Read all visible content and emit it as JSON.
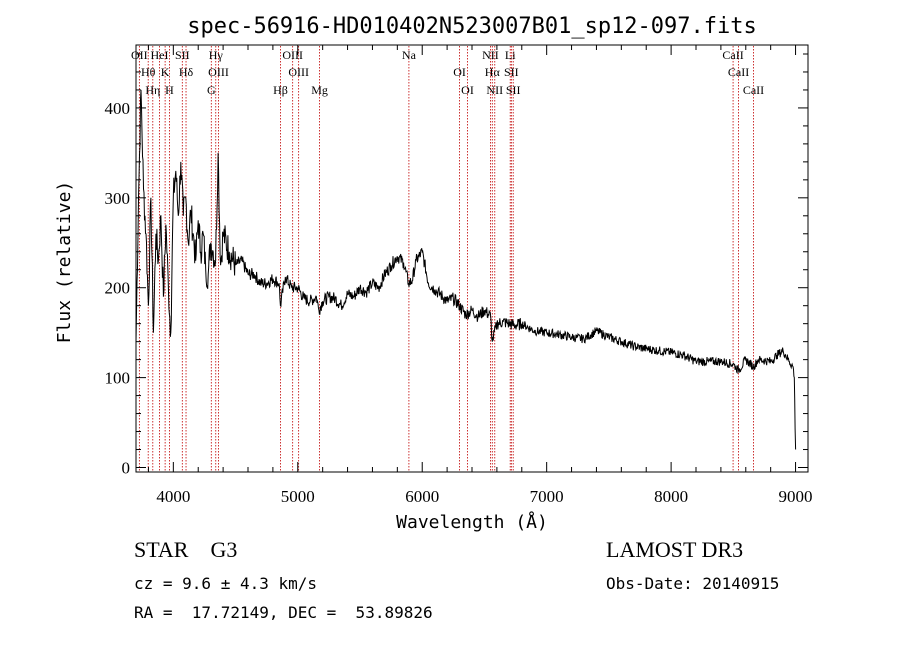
{
  "chart_data": {
    "type": "line",
    "title": "spec-56916-HD010402N523007B01_sp12-097.fits",
    "xlabel": "Wavelength (Å)",
    "ylabel": "Flux (relative)",
    "xlim": [
      3700,
      9100
    ],
    "ylim": [
      -5,
      470
    ],
    "xticks": [
      4000,
      5000,
      6000,
      7000,
      8000,
      9000
    ],
    "yticks": [
      0,
      100,
      200,
      300,
      400
    ],
    "grid": false,
    "line_color": "#000000",
    "marker_color": "#c00000",
    "spectrum": {
      "x": [
        3700,
        3720,
        3740,
        3760,
        3780,
        3800,
        3820,
        3840,
        3860,
        3880,
        3900,
        3920,
        3940,
        3960,
        3980,
        4000,
        4020,
        4040,
        4060,
        4080,
        4100,
        4120,
        4140,
        4160,
        4180,
        4200,
        4220,
        4240,
        4260,
        4280,
        4300,
        4320,
        4340,
        4360,
        4380,
        4400,
        4450,
        4500,
        4550,
        4600,
        4650,
        4700,
        4750,
        4800,
        4850,
        4860,
        4900,
        4950,
        5000,
        5050,
        5100,
        5150,
        5170,
        5200,
        5250,
        5300,
        5350,
        5400,
        5450,
        5500,
        5550,
        5600,
        5650,
        5700,
        5750,
        5800,
        5850,
        5890,
        5920,
        5950,
        6000,
        6050,
        6100,
        6150,
        6200,
        6250,
        6300,
        6350,
        6400,
        6450,
        6500,
        6550,
        6563,
        6600,
        6650,
        6700,
        6750,
        6800,
        6900,
        7000,
        7100,
        7200,
        7300,
        7400,
        7500,
        7600,
        7700,
        7800,
        7900,
        8000,
        8100,
        8200,
        8300,
        8400,
        8498,
        8542,
        8600,
        8662,
        8700,
        8800,
        8850,
        8900,
        8950,
        8980,
        8990,
        9000
      ],
      "y": [
        140,
        300,
        420,
        310,
        260,
        180,
        300,
        150,
        260,
        230,
        280,
        190,
        270,
        200,
        150,
        300,
        330,
        280,
        340,
        280,
        300,
        250,
        285,
        260,
        230,
        275,
        240,
        260,
        220,
        215,
        250,
        240,
        230,
        350,
        225,
        260,
        240,
        225,
        230,
        215,
        215,
        205,
        205,
        210,
        205,
        180,
        212,
        200,
        200,
        188,
        185,
        190,
        175,
        185,
        190,
        188,
        180,
        193,
        190,
        200,
        195,
        205,
        200,
        215,
        225,
        235,
        228,
        205,
        208,
        230,
        240,
        205,
        198,
        192,
        185,
        188,
        180,
        170,
        175,
        168,
        175,
        168,
        140,
        160,
        162,
        160,
        158,
        160,
        152,
        150,
        148,
        145,
        143,
        152,
        145,
        140,
        135,
        132,
        130,
        128,
        125,
        118,
        118,
        118,
        115,
        108,
        120,
        112,
        120,
        118,
        125,
        130,
        118,
        112,
        100,
        20
      ]
    },
    "lines_top": [
      {
        "x": 3727,
        "label": "OII"
      },
      {
        "x": 3798,
        "label": "Hθ"
      },
      {
        "x": 3835,
        "label": "Hη"
      },
      {
        "x": 3889,
        "label": "HeI"
      },
      {
        "x": 3934,
        "label": "K"
      },
      {
        "x": 3969,
        "label": "H"
      },
      {
        "x": 4072,
        "label": "SII"
      },
      {
        "x": 4102,
        "label": "Hδ"
      },
      {
        "x": 4305,
        "label": "G"
      },
      {
        "x": 4341,
        "label": "Hγ"
      },
      {
        "x": 4363,
        "label": "OIII"
      },
      {
        "x": 4861,
        "label": "Hβ"
      },
      {
        "x": 4959,
        "label": "OIII"
      },
      {
        "x": 5007,
        "label": "OIII"
      },
      {
        "x": 5175,
        "label": "Mg"
      },
      {
        "x": 5893,
        "label": "Na"
      },
      {
        "x": 6300,
        "label": "OI"
      },
      {
        "x": 6364,
        "label": "OI"
      },
      {
        "x": 6548,
        "label": "NII"
      },
      {
        "x": 6563,
        "label": "Hα"
      },
      {
        "x": 6583,
        "label": "NII"
      },
      {
        "x": 6707,
        "label": "Li"
      },
      {
        "x": 6716,
        "label": "SII"
      },
      {
        "x": 6731,
        "label": "SII"
      },
      {
        "x": 8498,
        "label": "CaII"
      },
      {
        "x": 8542,
        "label": "CaII"
      },
      {
        "x": 8662,
        "label": "CaII"
      }
    ]
  },
  "info": {
    "class": "STAR    G3",
    "survey": "LAMOST DR3",
    "cz": "cz = 9.6 ± 4.3 km/s",
    "obs_date": "Obs-Date: 20140915",
    "radec": "RA =  17.72149, DEC =  53.89826"
  }
}
